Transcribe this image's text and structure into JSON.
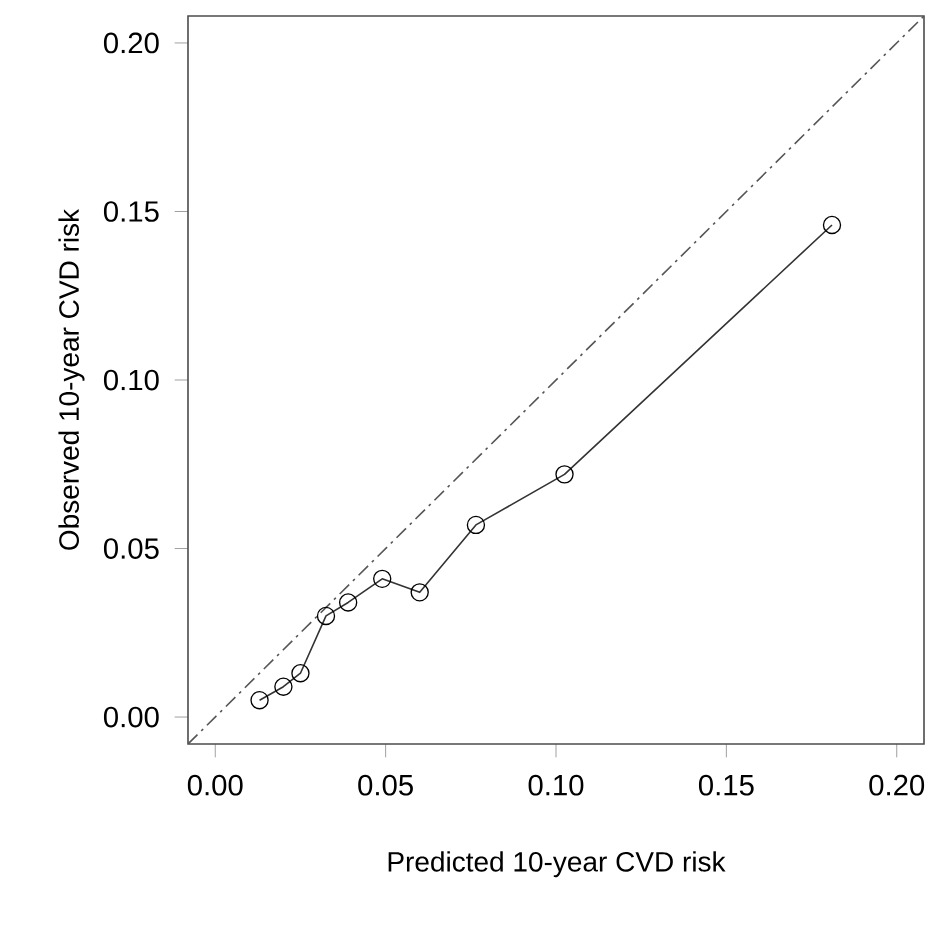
{
  "chart_data": {
    "type": "line",
    "xlabel": "Predicted 10-year CVD risk",
    "ylabel": "Observed 10-year CVD risk",
    "xlim": [
      -0.008,
      0.208
    ],
    "ylim": [
      -0.008,
      0.208
    ],
    "xticks": [
      {
        "value": 0,
        "label": "0.00"
      },
      {
        "value": 0.05,
        "label": "0.05"
      },
      {
        "value": 0.1,
        "label": "0.10"
      },
      {
        "value": 0.15,
        "label": "0.15"
      },
      {
        "value": 0.2,
        "label": "0.20"
      }
    ],
    "yticks": [
      {
        "value": 0,
        "label": "0.00"
      },
      {
        "value": 0.05,
        "label": "0.05"
      },
      {
        "value": 0.1,
        "label": "0.10"
      },
      {
        "value": 0.15,
        "label": "0.15"
      },
      {
        "value": 0.2,
        "label": "0.20"
      }
    ],
    "grid": false,
    "series": [
      {
        "color": "#333333",
        "marker": "circle",
        "line_style": "solid",
        "x": [
          0.013,
          0.02,
          0.025,
          0.0325,
          0.039,
          0.049,
          0.06,
          0.0765,
          0.1025,
          0.181
        ],
        "values": [
          0.005,
          0.009,
          0.013,
          0.03,
          0.034,
          0.041,
          0.037,
          0.057,
          0.072,
          0.146
        ]
      },
      {
        "color": "#555555",
        "marker": "none",
        "line_style": "dashed",
        "x": [
          -0.008,
          0.208
        ],
        "values": [
          -0.008,
          0.208
        ]
      }
    ]
  }
}
